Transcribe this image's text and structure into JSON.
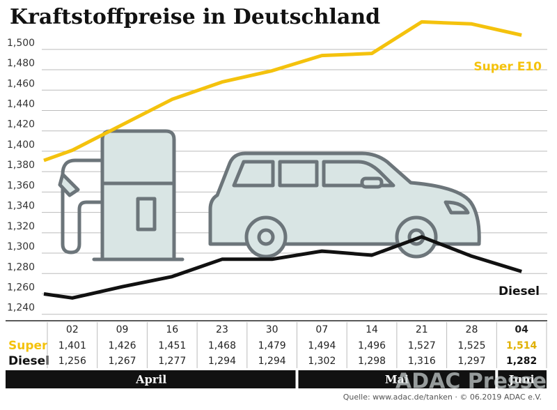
{
  "chart_data": {
    "type": "line",
    "title": "Kraftstoffpreise in Deutschland",
    "categories": [
      null,
      "02",
      "09",
      "16",
      "23",
      "30",
      "07",
      "14",
      "21",
      "28",
      "04"
    ],
    "months": [
      "April",
      "Mai",
      "Juni"
    ],
    "table_row_labels": [
      "Super",
      "Diesel"
    ],
    "series": [
      {
        "name": "Super E10",
        "color": "#f4c20d",
        "values": [
          1.391,
          1.401,
          1.426,
          1.451,
          1.468,
          1.479,
          1.494,
          1.496,
          1.527,
          1.525,
          1.514
        ],
        "value_labels": [
          null,
          "1,401",
          "1,426",
          "1,451",
          "1,468",
          "1,479",
          "1,494",
          "1,496",
          "1,527",
          "1,525",
          "1,514"
        ]
      },
      {
        "name": "Diesel",
        "color": "#111111",
        "values": [
          1.26,
          1.256,
          1.267,
          1.277,
          1.294,
          1.294,
          1.302,
          1.298,
          1.316,
          1.297,
          1.282
        ],
        "value_labels": [
          null,
          "1,256",
          "1,267",
          "1,277",
          "1,294",
          "1,294",
          "1,302",
          "1,298",
          "1,316",
          "1,297",
          "1,282"
        ]
      }
    ],
    "ylim": [
      1.235,
      1.53
    ],
    "yticks": [
      {
        "value": 1.24,
        "label": "1,240"
      },
      {
        "value": 1.26,
        "label": "1,260"
      },
      {
        "value": 1.28,
        "label": "1,280"
      },
      {
        "value": 1.3,
        "label": "1,300"
      },
      {
        "value": 1.32,
        "label": "1,320"
      },
      {
        "value": 1.34,
        "label": "1,340"
      },
      {
        "value": 1.36,
        "label": "1,360"
      },
      {
        "value": 1.38,
        "label": "1,380"
      },
      {
        "value": 1.4,
        "label": "1,400"
      },
      {
        "value": 1.42,
        "label": "1,420"
      },
      {
        "value": 1.44,
        "label": "1,440"
      },
      {
        "value": 1.46,
        "label": "1,460"
      },
      {
        "value": 1.48,
        "label": "1,480"
      },
      {
        "value": 1.5,
        "label": "1,500"
      }
    ],
    "grid": true,
    "source": "Quelle: www.adac.de/tanken · © 06.2019 ADAC e.V.",
    "watermark": "ADAC Presse"
  }
}
